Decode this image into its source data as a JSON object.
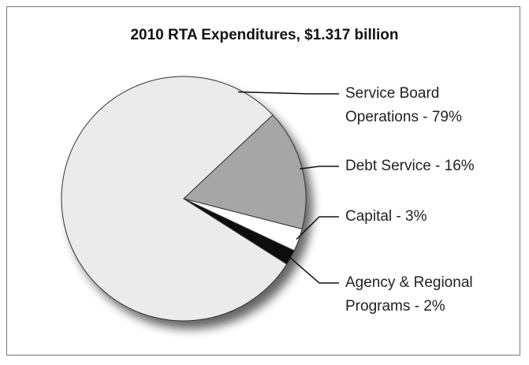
{
  "chart_data": {
    "type": "pie",
    "title": "2010 RTA Expenditures, $1.317 billion",
    "categories": [
      "Service Board Operations - 79%",
      "Debt Service - 16%",
      "Capital - 3%",
      "Agency & Regional Programs - 2%"
    ],
    "values": [
      79,
      16,
      3,
      2
    ],
    "colors": [
      "#ebebeb",
      "#a6a6a6",
      "#ffffff",
      "#111111"
    ]
  }
}
